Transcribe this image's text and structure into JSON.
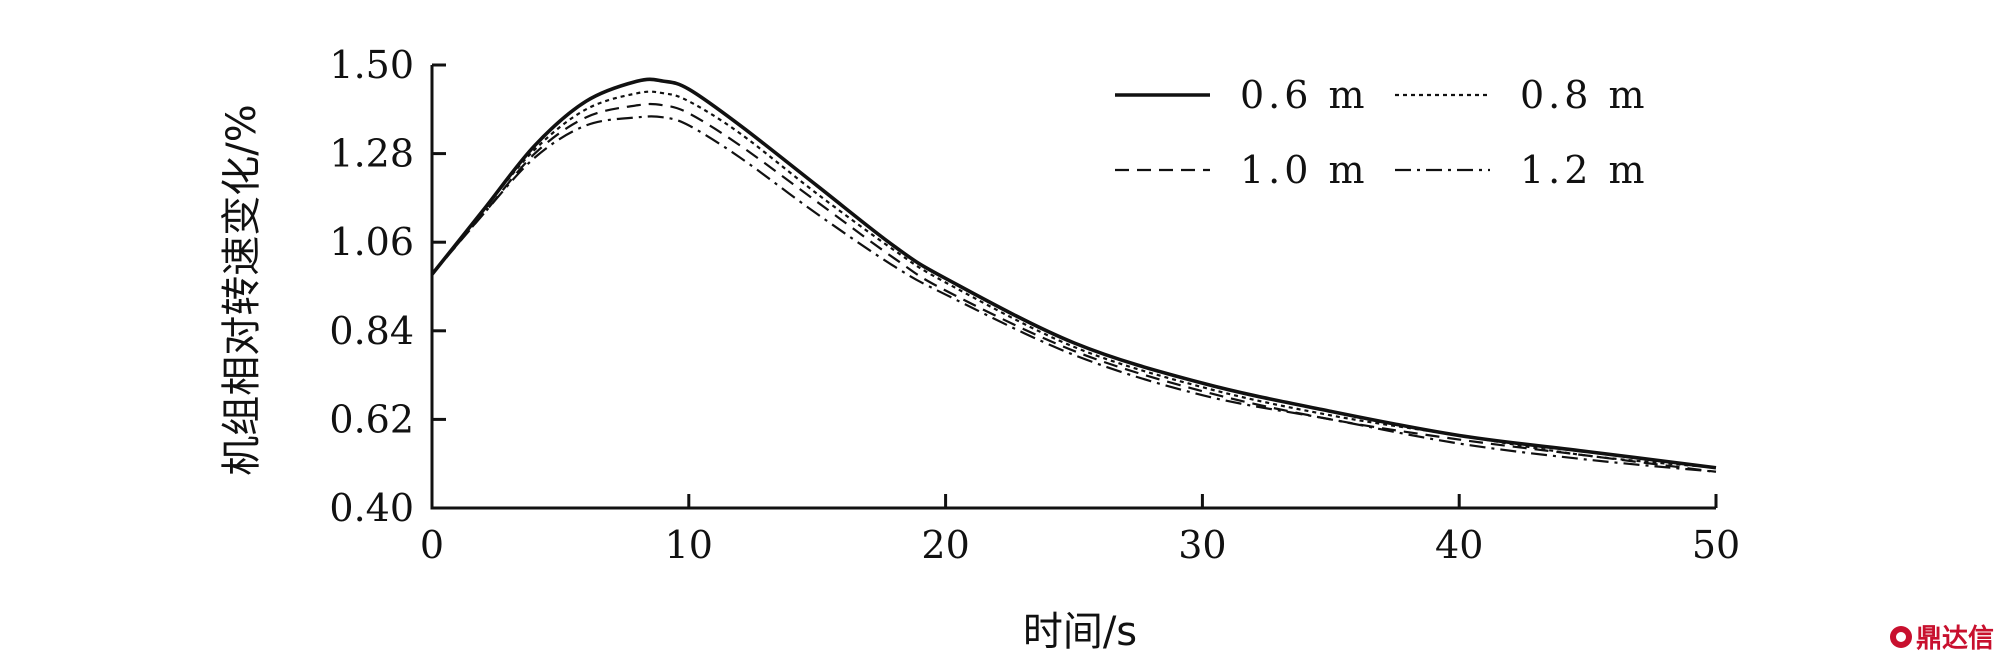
{
  "chart_data": {
    "type": "line",
    "title": "",
    "xlabel": "时间/s",
    "ylabel": "机组相对转速变化/%",
    "xlim": [
      0,
      50
    ],
    "ylim": [
      0.4,
      1.5
    ],
    "x_ticks": [
      "0",
      "10",
      "20",
      "30",
      "40",
      "50"
    ],
    "y_ticks": [
      "0.40",
      "0.62",
      "0.84",
      "1.06",
      "1.28",
      "1.50"
    ],
    "grid": false,
    "legend_position": "top-right",
    "x": [
      0,
      2,
      4,
      6,
      8,
      9,
      10,
      12,
      15,
      18,
      20,
      25,
      30,
      35,
      40,
      45,
      50
    ],
    "series": [
      {
        "name": "0.6 m",
        "style": "solid",
        "values": [
          0.98,
          1.14,
          1.3,
          1.41,
          1.46,
          1.46,
          1.44,
          1.35,
          1.2,
          1.05,
          0.97,
          0.81,
          0.71,
          0.64,
          0.58,
          0.54,
          0.5
        ]
      },
      {
        "name": "0.8 m",
        "style": "dotted",
        "values": [
          0.98,
          1.14,
          1.29,
          1.39,
          1.43,
          1.43,
          1.41,
          1.33,
          1.18,
          1.04,
          0.96,
          0.8,
          0.7,
          0.63,
          0.58,
          0.53,
          0.5
        ]
      },
      {
        "name": "1.0 m",
        "style": "dashed",
        "values": [
          0.98,
          1.13,
          1.28,
          1.37,
          1.4,
          1.4,
          1.38,
          1.3,
          1.16,
          1.02,
          0.94,
          0.79,
          0.69,
          0.62,
          0.57,
          0.53,
          0.49
        ]
      },
      {
        "name": "1.2 m",
        "style": "dashdot",
        "values": [
          0.98,
          1.13,
          1.27,
          1.35,
          1.37,
          1.37,
          1.35,
          1.27,
          1.13,
          1.0,
          0.93,
          0.78,
          0.68,
          0.62,
          0.56,
          0.52,
          0.49
        ]
      }
    ]
  },
  "watermark": {
    "text": "鼎达信"
  }
}
